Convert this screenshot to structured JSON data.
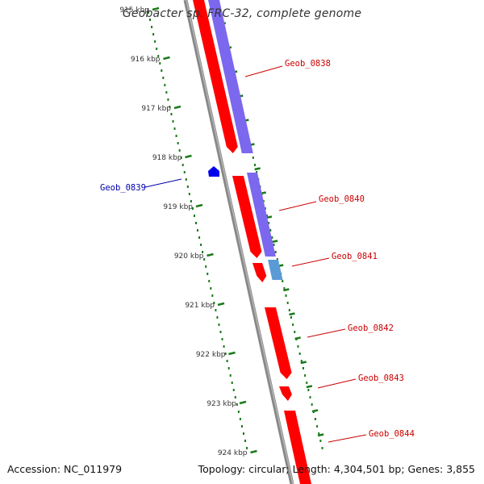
{
  "title": "Geobacter sp. FRC-32, complete genome",
  "footer": {
    "accession": "Accession: NC_011979",
    "summary": "Topology: circular; Length: 4,304,501 bp; Genes: 3,855"
  },
  "colors": {
    "forward_gene": "#ff0000",
    "reverse_gene": "#0000ee",
    "forward_cds": "#7b68ee",
    "cds_light": "#5b9bd5",
    "backbone": "#888888",
    "ticks": "#1a7a1a",
    "label_forward": "#cc0000",
    "label_reverse": "#0000aa"
  },
  "ticks": [
    "915 kbp",
    "916 kbp",
    "917 kbp",
    "918 kbp",
    "919 kbp",
    "920 kbp",
    "921 kbp",
    "922 kbp",
    "923 kbp",
    "924 kbp"
  ],
  "genes": [
    {
      "name": "Geob_0838",
      "strand": "+"
    },
    {
      "name": "Geob_0839",
      "strand": "-"
    },
    {
      "name": "Geob_0840",
      "strand": "+"
    },
    {
      "name": "Geob_0841",
      "strand": "+"
    },
    {
      "name": "Geob_0842",
      "strand": "+"
    },
    {
      "name": "Geob_0843",
      "strand": "+"
    },
    {
      "name": "Geob_0844",
      "strand": "+"
    }
  ]
}
